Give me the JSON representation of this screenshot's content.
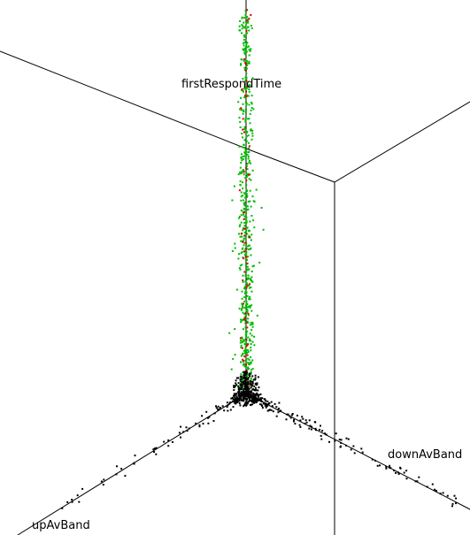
{
  "chart_data": {
    "type": "scatter",
    "projection": "3d",
    "title": "",
    "axes": {
      "x": {
        "label": "upAvBand"
      },
      "y": {
        "label": "downAvBand"
      },
      "z": {
        "label": "firstRespondTime"
      }
    },
    "grid": false,
    "legend": "none",
    "colors": {
      "green": "#00bb00",
      "red": "#dd0000",
      "black": "#000000"
    },
    "point_groups": [
      {
        "color": "green",
        "clusters": [
          {
            "x": [
              0.0,
              0.035
            ],
            "y": [
              0.0,
              0.035
            ],
            "z": [
              0.02,
              0.98
            ],
            "count": 560
          },
          {
            "x": [
              0.0,
              0.08
            ],
            "y": [
              0.0,
              0.08
            ],
            "z": [
              0.08,
              0.6
            ],
            "count": 50
          }
        ]
      },
      {
        "color": "red",
        "clusters": [
          {
            "x": [
              0.0,
              0.03
            ],
            "y": [
              0.0,
              0.03
            ],
            "z": [
              0.02,
              0.98
            ],
            "count": 70
          }
        ]
      },
      {
        "color": "black",
        "clusters": [
          {
            "x": [
              0.0,
              0.06
            ],
            "y": [
              0.0,
              0.06
            ],
            "z": [
              0.0,
              0.06
            ],
            "count": 360
          },
          {
            "x": [
              0.0,
              0.03
            ],
            "y": [
              0.05,
              0.95
            ],
            "z": [
              0.0,
              0.02
            ],
            "count": 150
          },
          {
            "x": [
              0.05,
              0.85
            ],
            "y": [
              0.0,
              0.03
            ],
            "z": [
              0.0,
              0.02
            ],
            "count": 70
          }
        ]
      }
    ]
  }
}
